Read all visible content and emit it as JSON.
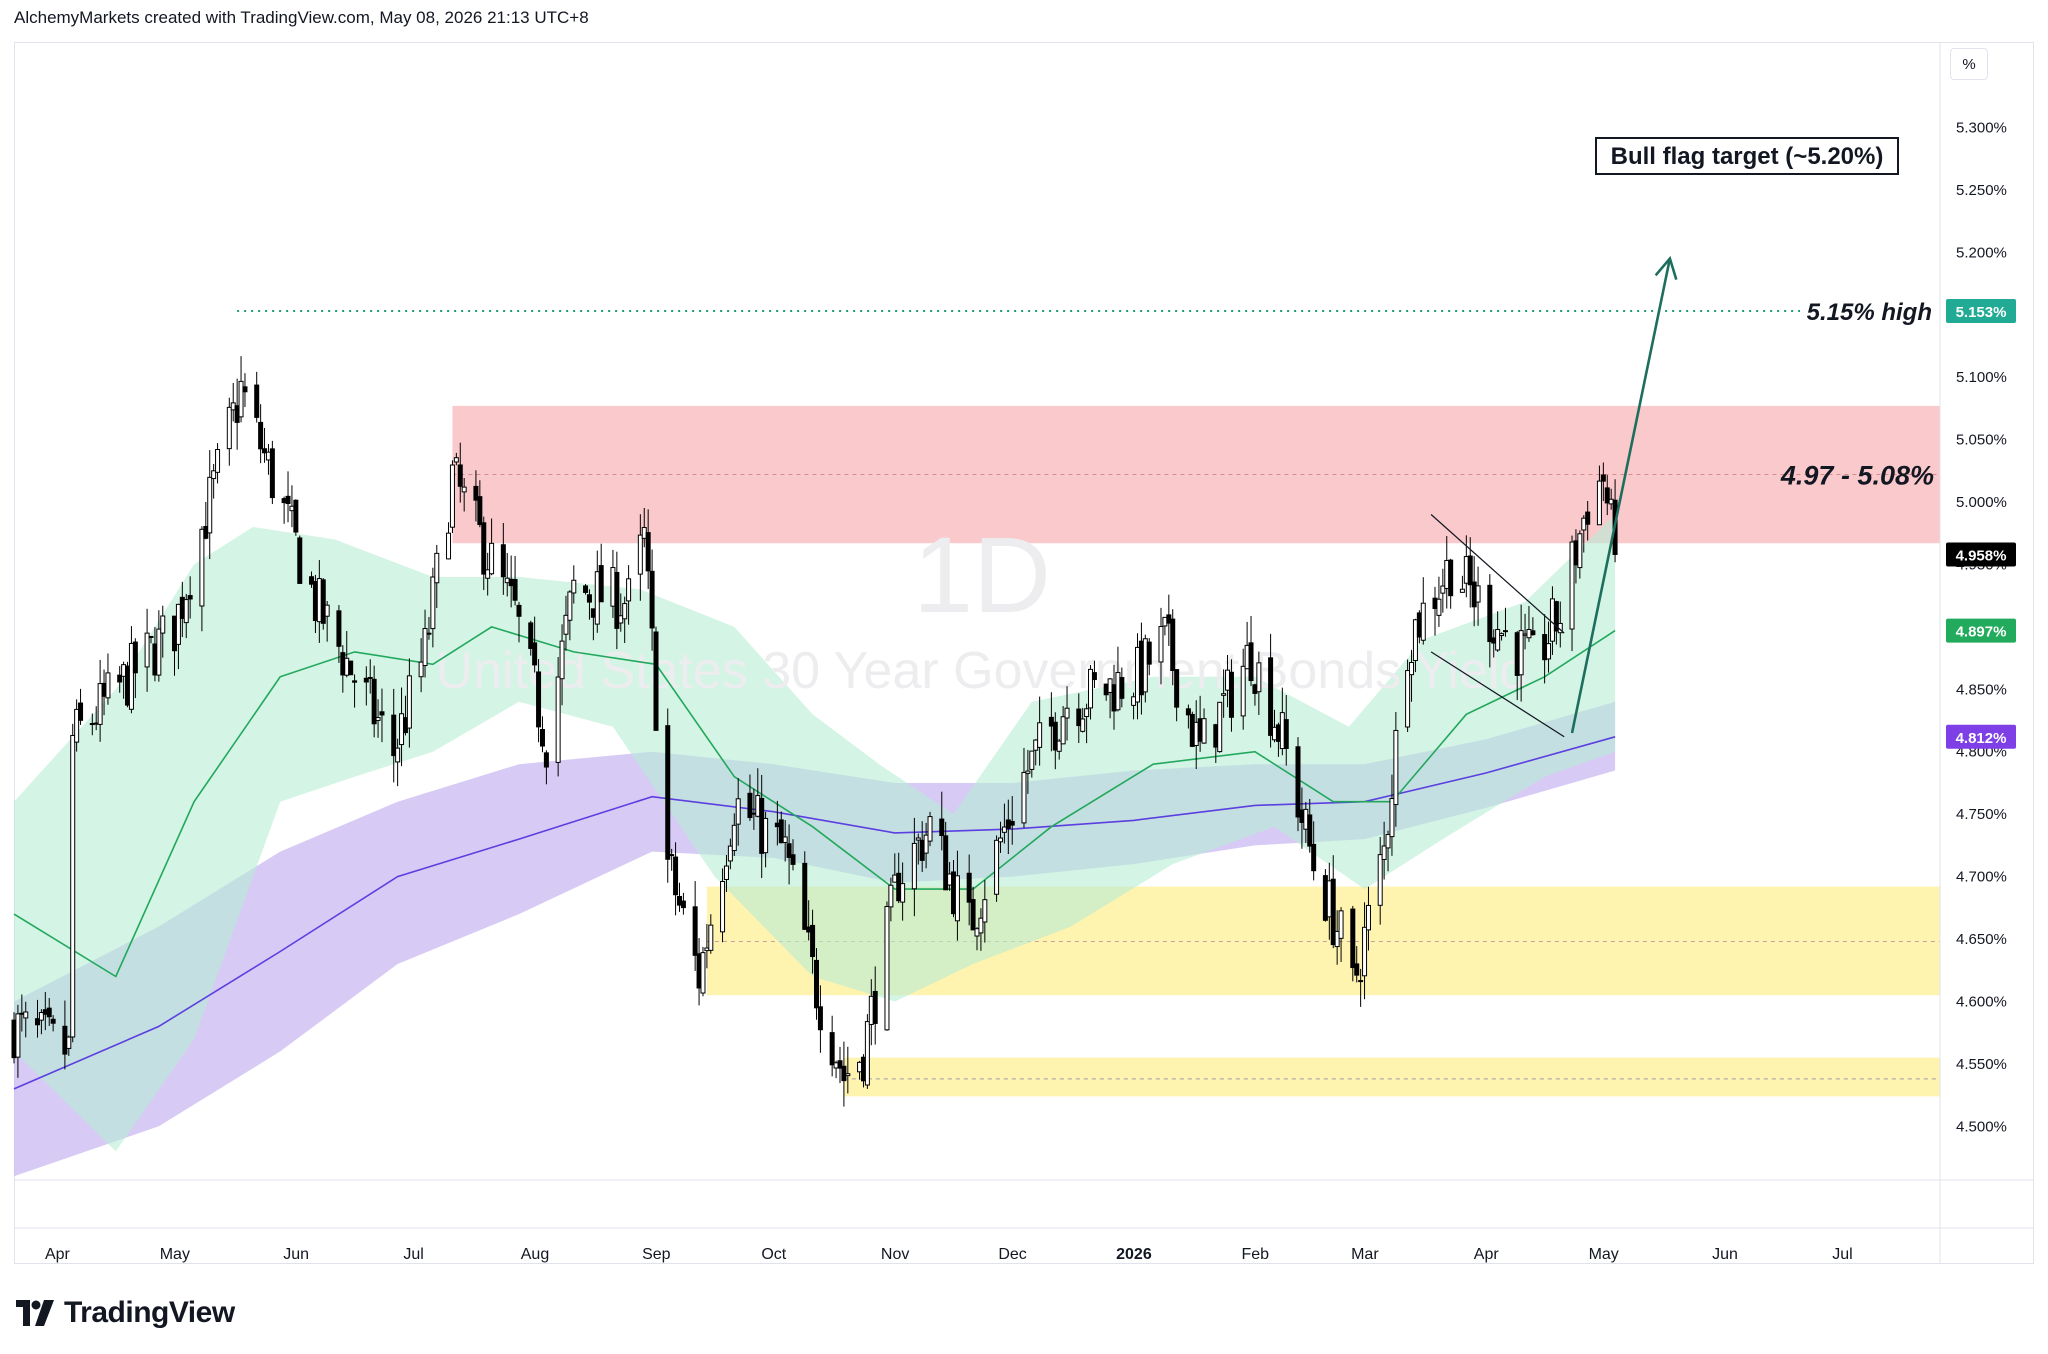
{
  "header": {
    "text": "AlchemyMarkets created with TradingView.com, May 08, 2026 21:13 UTC+8"
  },
  "watermark": {
    "interval": "1D",
    "symbol": "United States 30 Year Government Bonds Yield"
  },
  "scale_button": {
    "label": "%"
  },
  "footer": {
    "logo_text": "TradingView"
  },
  "colors": {
    "resistance_zone": "#f9c9cc",
    "support_zone": "#fff3b0",
    "green_band": "#b7ecd3",
    "purple_band": "#c9b9f2",
    "green_ma": "#22a85c",
    "purple_ma": "#5b3fe0",
    "high_line": "#1f9e72",
    "arrow": "#1e6e5e",
    "candle": "#000000"
  },
  "chart_data": {
    "type": "candlestick",
    "title": "",
    "x_labels": [
      "Apr",
      "May",
      "Jun",
      "Jul",
      "Aug",
      "Sep",
      "Oct",
      "Nov",
      "Dec",
      "2026",
      "Feb",
      "Mar",
      "Apr",
      "May",
      "Jun",
      "Jul"
    ],
    "x_label_bold": "2026",
    "y_ticks": [
      "5.300%",
      "5.250%",
      "5.200%",
      "5.150%",
      "5.100%",
      "5.050%",
      "5.000%",
      "4.950%",
      "4.900%",
      "4.850%",
      "4.800%",
      "4.750%",
      "4.700%",
      "4.650%",
      "4.600%",
      "4.550%",
      "4.500%"
    ],
    "ylim": [
      4.457,
      5.338
    ],
    "x_range": [
      "2025-03-25",
      "2026-07-30"
    ],
    "last_date": "2026-05-08",
    "price_badges": [
      {
        "label": "5.153%",
        "value": 5.153,
        "color": "#22ab94",
        "text_color": "#ffffff"
      },
      {
        "label": "4.958%",
        "value": 4.958,
        "color": "#000000",
        "text_color": "#ffffff"
      },
      {
        "label": "4.897%",
        "value": 4.897,
        "color": "#22ab5c",
        "text_color": "#ffffff"
      },
      {
        "label": "4.812%",
        "value": 4.812,
        "color": "#7e3fe6",
        "text_color": "#ffffff"
      }
    ],
    "zones": [
      {
        "name": "resistance",
        "from": 4.967,
        "to": 5.077,
        "mid": 5.022,
        "x_start": "2025-07-15",
        "label": "4.97 - 5.08%"
      },
      {
        "name": "support-upper",
        "from": 4.605,
        "to": 4.692,
        "mid": 4.648,
        "x_start": "2025-09-18"
      },
      {
        "name": "support-lower",
        "from": 4.524,
        "to": 4.555,
        "mid": 4.538,
        "x_start": "2025-10-23"
      }
    ],
    "high_line": {
      "value": 5.153,
      "x_start": "2025-05-21",
      "label": "5.15% high"
    },
    "target_label": "Bull flag target (~5.20%)",
    "target_arrow": {
      "from": [
        "2026-04-27",
        4.815
      ],
      "to": [
        "2026-05-22",
        5.195
      ]
    },
    "flag_channel": [
      {
        "from": [
          "2026-03-22",
          4.99
        ],
        "to": [
          "2026-04-25",
          4.895
        ]
      },
      {
        "from": [
          "2026-03-22",
          4.88
        ],
        "to": [
          "2026-04-25",
          4.812
        ]
      }
    ],
    "series": [
      {
        "name": "",
        "points": [
          [
            "2025-03-25",
            4.58
          ],
          [
            "2025-04-08",
            4.56
          ],
          [
            "2025-04-09",
            4.81
          ],
          [
            "2025-05-05",
            4.9
          ],
          [
            "2025-05-22",
            5.09
          ],
          [
            "2025-06-10",
            4.92
          ],
          [
            "2025-06-30",
            4.8
          ],
          [
            "2025-07-08",
            4.88
          ],
          [
            "2025-07-15",
            5.02
          ],
          [
            "2025-07-31",
            4.91
          ],
          [
            "2025-08-08",
            4.81
          ],
          [
            "2025-08-15",
            4.93
          ],
          [
            "2025-08-29",
            4.92
          ],
          [
            "2025-09-02",
            4.97
          ],
          [
            "2025-09-08",
            4.71
          ],
          [
            "2025-09-16",
            4.62
          ],
          [
            "2025-09-25",
            4.76
          ],
          [
            "2025-10-08",
            4.72
          ],
          [
            "2025-10-16",
            4.61
          ],
          [
            "2025-10-23",
            4.54
          ],
          [
            "2025-10-28",
            4.56
          ],
          [
            "2025-11-06",
            4.7
          ],
          [
            "2025-11-14",
            4.74
          ],
          [
            "2025-11-24",
            4.66
          ],
          [
            "2025-12-08",
            4.78
          ],
          [
            "2025-12-19",
            4.84
          ],
          [
            "2026-01-06",
            4.86
          ],
          [
            "2026-01-13",
            4.89
          ],
          [
            "2026-01-22",
            4.8
          ],
          [
            "2026-02-04",
            4.88
          ],
          [
            "2026-02-12",
            4.81
          ],
          [
            "2026-02-20",
            4.71
          ],
          [
            "2026-02-27",
            4.65
          ],
          [
            "2026-03-02",
            4.61
          ],
          [
            "2026-03-10",
            4.72
          ],
          [
            "2026-03-16",
            4.89
          ],
          [
            "2026-03-27",
            4.95
          ],
          [
            "2026-04-08",
            4.9
          ],
          [
            "2026-04-17",
            4.87
          ],
          [
            "2026-04-24",
            4.91
          ],
          [
            "2026-05-01",
            5.0
          ],
          [
            "2026-05-05",
            5.02
          ],
          [
            "2026-05-08",
            4.958
          ]
        ]
      },
      {
        "name": "",
        "points": [
          [
            "2025-03-25",
            4.67
          ],
          [
            "2025-04-20",
            4.62
          ],
          [
            "2025-05-10",
            4.76
          ],
          [
            "2025-06-01",
            4.86
          ],
          [
            "2025-06-20",
            4.88
          ],
          [
            "2025-07-10",
            4.87
          ],
          [
            "2025-07-25",
            4.9
          ],
          [
            "2025-08-15",
            4.88
          ],
          [
            "2025-09-05",
            4.87
          ],
          [
            "2025-09-25",
            4.78
          ],
          [
            "2025-10-15",
            4.74
          ],
          [
            "2025-11-05",
            4.69
          ],
          [
            "2025-11-25",
            4.69
          ],
          [
            "2025-12-15",
            4.74
          ],
          [
            "2026-01-10",
            4.79
          ],
          [
            "2026-02-05",
            4.8
          ],
          [
            "2026-02-25",
            4.76
          ],
          [
            "2026-03-12",
            4.76
          ],
          [
            "2026-03-31",
            4.83
          ],
          [
            "2026-04-20",
            4.86
          ],
          [
            "2026-05-08",
            4.897
          ]
        ]
      },
      {
        "name": "",
        "points": [
          [
            "2025-03-25",
            4.53
          ],
          [
            "2025-05-01",
            4.58
          ],
          [
            "2025-06-01",
            4.64
          ],
          [
            "2025-07-01",
            4.7
          ],
          [
            "2025-08-01",
            4.73
          ],
          [
            "2025-09-04",
            4.764
          ],
          [
            "2025-10-05",
            4.752
          ],
          [
            "2025-11-05",
            4.735
          ],
          [
            "2025-12-05",
            4.738
          ],
          [
            "2026-01-05",
            4.745
          ],
          [
            "2026-02-05",
            4.757
          ],
          [
            "2026-03-05",
            4.76
          ],
          [
            "2026-04-05",
            4.783
          ],
          [
            "2026-05-08",
            4.812
          ]
        ]
      }
    ],
    "bands": [
      {
        "name": "",
        "upper": [
          [
            "2025-03-25",
            4.76
          ],
          [
            "2025-04-20",
            4.85
          ],
          [
            "2025-05-10",
            4.95
          ],
          [
            "2025-05-25",
            4.98
          ],
          [
            "2025-06-15",
            4.97
          ],
          [
            "2025-07-10",
            4.94
          ],
          [
            "2025-08-01",
            4.94
          ],
          [
            "2025-09-01",
            4.93
          ],
          [
            "2025-09-25",
            4.9
          ],
          [
            "2025-10-15",
            4.83
          ],
          [
            "2025-11-01",
            4.79
          ],
          [
            "2025-11-20",
            4.75
          ],
          [
            "2025-12-10",
            4.84
          ],
          [
            "2026-01-10",
            4.86
          ],
          [
            "2026-02-05",
            4.86
          ],
          [
            "2026-03-01",
            4.82
          ],
          [
            "2026-03-20",
            4.89
          ],
          [
            "2026-04-15",
            4.92
          ],
          [
            "2026-05-08",
            4.99
          ]
        ],
        "lower": [
          [
            "2025-03-25",
            4.56
          ],
          [
            "2025-04-20",
            4.48
          ],
          [
            "2025-05-10",
            4.57
          ],
          [
            "2025-06-01",
            4.76
          ],
          [
            "2025-06-20",
            4.78
          ],
          [
            "2025-07-10",
            4.8
          ],
          [
            "2025-08-01",
            4.84
          ],
          [
            "2025-08-25",
            4.82
          ],
          [
            "2025-09-20",
            4.7
          ],
          [
            "2025-10-15",
            4.62
          ],
          [
            "2025-11-05",
            4.6
          ],
          [
            "2025-11-25",
            4.63
          ],
          [
            "2025-12-20",
            4.66
          ],
          [
            "2026-01-15",
            4.71
          ],
          [
            "2026-02-10",
            4.74
          ],
          [
            "2026-03-05",
            4.69
          ],
          [
            "2026-03-25",
            4.73
          ],
          [
            "2026-04-20",
            4.78
          ],
          [
            "2026-05-08",
            4.8
          ]
        ]
      },
      {
        "name": "",
        "upper": [
          [
            "2025-03-25",
            4.6
          ],
          [
            "2025-05-01",
            4.66
          ],
          [
            "2025-06-01",
            4.72
          ],
          [
            "2025-07-01",
            4.76
          ],
          [
            "2025-08-01",
            4.79
          ],
          [
            "2025-09-04",
            4.8
          ],
          [
            "2025-10-05",
            4.79
          ],
          [
            "2025-11-05",
            4.775
          ],
          [
            "2025-12-05",
            4.775
          ],
          [
            "2026-01-05",
            4.785
          ],
          [
            "2026-02-05",
            4.79
          ],
          [
            "2026-03-05",
            4.79
          ],
          [
            "2026-04-05",
            4.81
          ],
          [
            "2026-05-08",
            4.84
          ]
        ],
        "lower": [
          [
            "2025-03-25",
            4.46
          ],
          [
            "2025-05-01",
            4.5
          ],
          [
            "2025-06-01",
            4.56
          ],
          [
            "2025-07-01",
            4.63
          ],
          [
            "2025-08-01",
            4.67
          ],
          [
            "2025-09-04",
            4.72
          ],
          [
            "2025-10-05",
            4.715
          ],
          [
            "2025-11-05",
            4.695
          ],
          [
            "2025-12-05",
            4.7
          ],
          [
            "2026-01-05",
            4.71
          ],
          [
            "2026-02-05",
            4.725
          ],
          [
            "2026-03-05",
            4.73
          ],
          [
            "2026-04-05",
            4.755
          ],
          [
            "2026-05-08",
            4.785
          ]
        ]
      }
    ]
  }
}
